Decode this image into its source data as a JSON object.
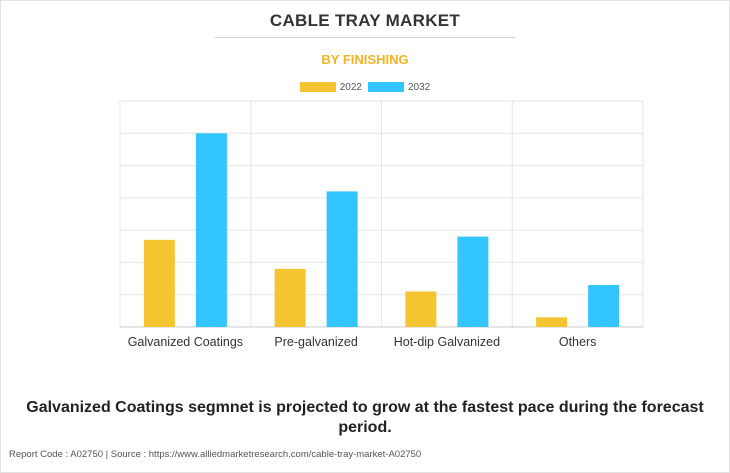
{
  "header": {
    "title": "CABLE TRAY MARKET",
    "subtitle": "BY FINISHING"
  },
  "colors": {
    "series_2022": "#f5c531",
    "series_2032": "#33c5ff",
    "subtitle": "#f5b324",
    "grid": "#e6e6e6"
  },
  "chart_data": {
    "type": "bar",
    "title": "CABLE TRAY MARKET",
    "subtitle": "BY FINISHING",
    "categories": [
      "Galvanized Coatings",
      "Pre-galvanized",
      "Hot-dip Galvanized",
      "Others"
    ],
    "series": [
      {
        "name": "2022",
        "color": "#f5c531",
        "values": [
          2.7,
          1.8,
          1.1,
          0.3
        ]
      },
      {
        "name": "2032",
        "color": "#33c5ff",
        "values": [
          6.0,
          4.2,
          2.8,
          1.3
        ]
      }
    ],
    "ylim": [
      0,
      7
    ],
    "grid": true,
    "y_tick_labels_shown": false,
    "legend_position": "top-center"
  },
  "footer": {
    "note": "Galvanized Coatings segmnet is projected to grow at the fastest pace during the forecast period.",
    "source": "Report Code : A02750  |  Source : https://www.alliedmarketresearch.com/cable-tray-market-A02750"
  }
}
